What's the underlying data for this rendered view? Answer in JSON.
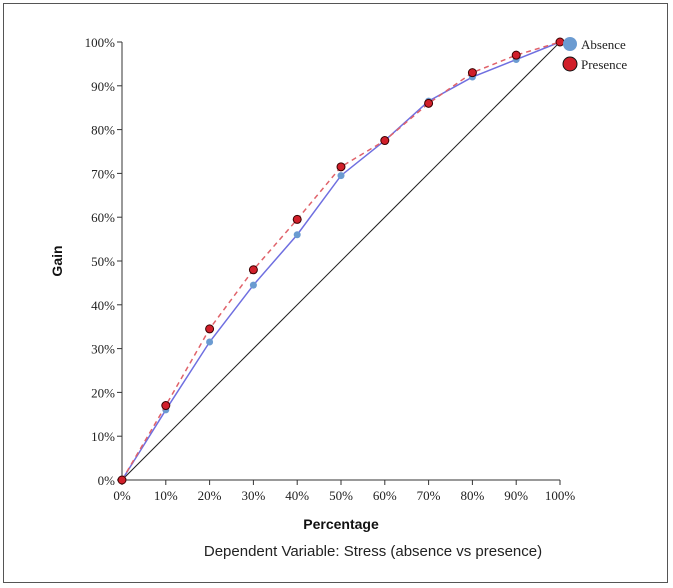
{
  "colors": {
    "absence": "#6b9bd1",
    "absence_line": "#6f6fe0",
    "presence": "#d11f2a",
    "presence_line": "#e0626a",
    "baseline": "#222222"
  },
  "chart_data": {
    "type": "line",
    "title": "",
    "xlabel": "Percentage",
    "ylabel": "Gain",
    "caption": "Dependent Variable: Stress (absence vs presence)",
    "xlim": [
      0,
      100
    ],
    "ylim": [
      0,
      100
    ],
    "x_ticks": [
      "0%",
      "10%",
      "20%",
      "30%",
      "40%",
      "50%",
      "60%",
      "70%",
      "80%",
      "90%",
      "100%"
    ],
    "y_ticks": [
      "0%",
      "10%",
      "20%",
      "30%",
      "40%",
      "50%",
      "60%",
      "70%",
      "80%",
      "90%",
      "100%"
    ],
    "legend_position": "top-right",
    "x": [
      0,
      10,
      20,
      30,
      40,
      50,
      60,
      70,
      80,
      90,
      100
    ],
    "series": [
      {
        "name": "Absence",
        "values": [
          0,
          16,
          31.5,
          44.5,
          56,
          69.5,
          77.5,
          86.5,
          92,
          96,
          100
        ]
      },
      {
        "name": "Presence",
        "values": [
          0,
          17,
          34.5,
          48,
          59.5,
          71.5,
          77.5,
          86,
          93,
          97,
          100
        ]
      }
    ],
    "baseline": {
      "x": [
        0,
        100
      ],
      "y": [
        0,
        100
      ]
    }
  }
}
